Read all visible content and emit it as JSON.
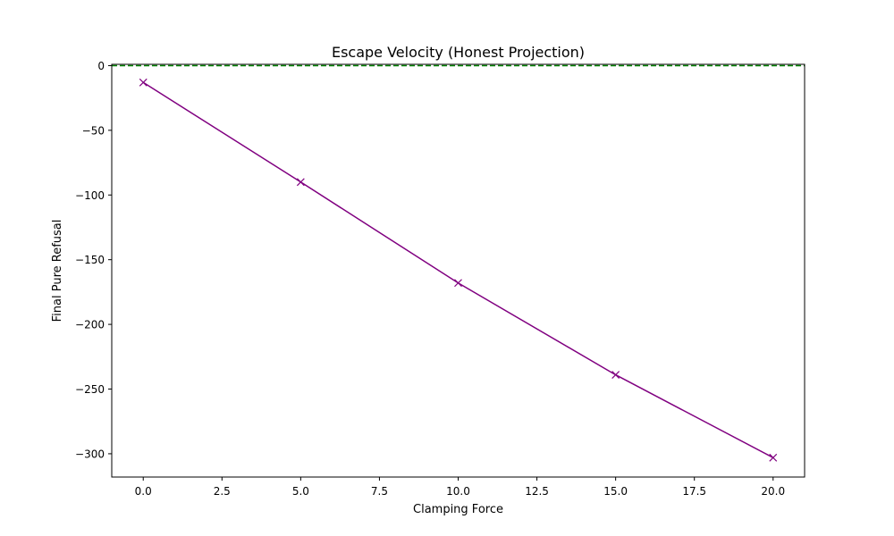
{
  "chart_data": {
    "type": "line",
    "title": "Escape Velocity (Honest Projection)",
    "xlabel": "Clamping Force",
    "ylabel": "Final Pure Refusal",
    "xlim": [
      -1,
      21
    ],
    "ylim": [
      -318,
      1
    ],
    "x_ticks": [
      0.0,
      2.5,
      5.0,
      7.5,
      10.0,
      12.5,
      15.0,
      17.5,
      20.0
    ],
    "x_tick_labels": [
      "0.0",
      "2.5",
      "5.0",
      "7.5",
      "10.0",
      "12.5",
      "15.0",
      "17.5",
      "20.0"
    ],
    "y_ticks": [
      0,
      -50,
      -100,
      -150,
      -200,
      -250,
      -300
    ],
    "y_tick_labels": [
      "0",
      "−50",
      "−100",
      "−150",
      "−200",
      "−250",
      "−300"
    ],
    "grid": false,
    "series": [
      {
        "x": [
          0,
          5,
          10,
          15,
          20
        ],
        "y": [
          -13,
          -90,
          -168,
          -239,
          -303
        ],
        "color": "#800080",
        "marker": "x"
      }
    ],
    "reference_lines": [
      {
        "orientation": "horizontal",
        "y": 0,
        "color": "#008000",
        "style": "dashed"
      }
    ]
  }
}
